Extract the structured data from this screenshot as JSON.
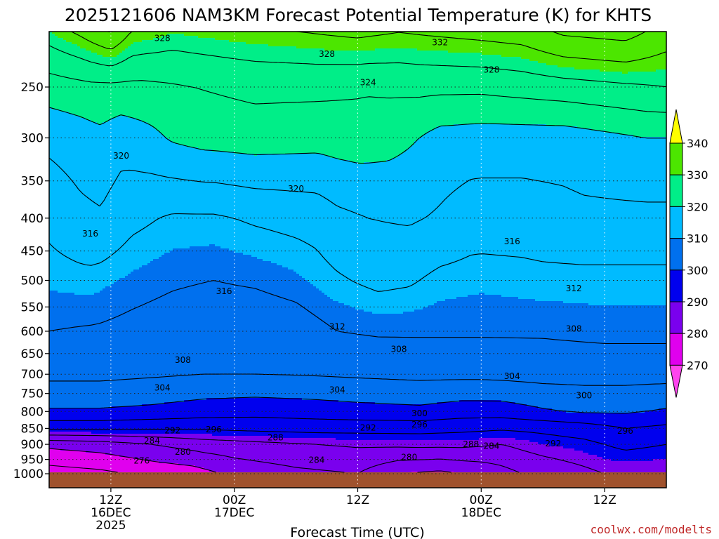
{
  "chart_data": {
    "type": "heatmap",
    "title": "2025121606 NAM3KM Forecast Potential Temperature (K) for KHTS",
    "xlabel": "Forecast Time (UTC)",
    "ylabel": "",
    "y_axis": {
      "scale": "log-pressure",
      "reversed": true,
      "range": [
        1000,
        200
      ],
      "ticks": [
        250,
        300,
        350,
        400,
        450,
        500,
        550,
        600,
        650,
        700,
        750,
        800,
        850,
        900,
        950,
        1000
      ]
    },
    "x_axis": {
      "range_hours": [
        0,
        60
      ],
      "ticks": [
        {
          "hour": 6,
          "line1": "12Z",
          "line2": "16DEC",
          "line3": "2025"
        },
        {
          "hour": 18,
          "line1": "00Z",
          "line2": "17DEC",
          "line3": ""
        },
        {
          "hour": 30,
          "line1": "12Z",
          "line2": "",
          "line3": ""
        },
        {
          "hour": 42,
          "line1": "00Z",
          "line2": "18DEC",
          "line3": ""
        },
        {
          "hour": 54,
          "line1": "12Z",
          "line2": "",
          "line3": ""
        }
      ]
    },
    "grid": true,
    "colorbar": {
      "position": "right",
      "labels": [
        "340",
        "330",
        "320",
        "310",
        "300",
        "290",
        "280",
        "270"
      ],
      "levels": [
        {
          "low": 340,
          "high": 350,
          "color": "#ffff00"
        },
        {
          "low": 330,
          "high": 340,
          "color": "#4ce600"
        },
        {
          "low": 320,
          "high": 330,
          "color": "#00ee88"
        },
        {
          "low": 310,
          "high": 320,
          "color": "#00bbff"
        },
        {
          "low": 300,
          "high": 310,
          "color": "#0070ee"
        },
        {
          "low": 290,
          "high": 300,
          "color": "#0000ee"
        },
        {
          "low": 280,
          "high": 290,
          "color": "#7a00ee"
        },
        {
          "low": 270,
          "high": 280,
          "color": "#e000ee"
        },
        {
          "low": 260,
          "high": 270,
          "color": "#ff44ee"
        }
      ]
    },
    "ground_color": "#a0522d",
    "contour_interval_K": 4,
    "contour_labels": [
      {
        "hour": 11,
        "p": 210,
        "text": "328"
      },
      {
        "hour": 27,
        "p": 222,
        "text": "328"
      },
      {
        "hour": 38,
        "p": 213,
        "text": "332"
      },
      {
        "hour": 43,
        "p": 235,
        "text": "328"
      },
      {
        "hour": 31,
        "p": 246,
        "text": "324"
      },
      {
        "hour": 7,
        "p": 320,
        "text": "320"
      },
      {
        "hour": 24,
        "p": 360,
        "text": "320"
      },
      {
        "hour": 4,
        "p": 423,
        "text": "316"
      },
      {
        "hour": 45,
        "p": 435,
        "text": "316"
      },
      {
        "hour": 17,
        "p": 520,
        "text": "316"
      },
      {
        "hour": 51,
        "p": 515,
        "text": "312"
      },
      {
        "hour": 28,
        "p": 590,
        "text": "312"
      },
      {
        "hour": 51,
        "p": 595,
        "text": "308"
      },
      {
        "hour": 34,
        "p": 640,
        "text": "308"
      },
      {
        "hour": 13,
        "p": 665,
        "text": "308"
      },
      {
        "hour": 11,
        "p": 735,
        "text": "304"
      },
      {
        "hour": 28,
        "p": 740,
        "text": "304"
      },
      {
        "hour": 45,
        "p": 705,
        "text": "304"
      },
      {
        "hour": 52,
        "p": 755,
        "text": "300"
      },
      {
        "hour": 36,
        "p": 805,
        "text": "300"
      },
      {
        "hour": 36,
        "p": 838,
        "text": "296"
      },
      {
        "hour": 16,
        "p": 853,
        "text": "296"
      },
      {
        "hour": 56,
        "p": 858,
        "text": "296"
      },
      {
        "hour": 31,
        "p": 848,
        "text": "292"
      },
      {
        "hour": 12,
        "p": 857,
        "text": "292"
      },
      {
        "hour": 49,
        "p": 898,
        "text": "292"
      },
      {
        "hour": 22,
        "p": 878,
        "text": "288"
      },
      {
        "hour": 41,
        "p": 900,
        "text": "288"
      },
      {
        "hour": 10,
        "p": 888,
        "text": "284"
      },
      {
        "hour": 26,
        "p": 952,
        "text": "284"
      },
      {
        "hour": 43,
        "p": 905,
        "text": "284"
      },
      {
        "hour": 13,
        "p": 925,
        "text": "280"
      },
      {
        "hour": 35,
        "p": 942,
        "text": "280"
      },
      {
        "hour": 9,
        "p": 955,
        "text": "276"
      }
    ],
    "credit": "coolwx.com/modelts"
  }
}
